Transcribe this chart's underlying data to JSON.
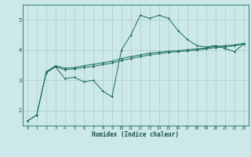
{
  "xlabel": "Humidex (Indice chaleur)",
  "background_color": "#cce8e8",
  "grid_color": "#aacccc",
  "line_color": "#1a6a60",
  "xlim": [
    -0.5,
    23.5
  ],
  "ylim": [
    1.5,
    5.5
  ],
  "yticks": [
    2,
    3,
    4,
    5
  ],
  "xticks": [
    0,
    1,
    2,
    3,
    4,
    5,
    6,
    7,
    8,
    9,
    10,
    11,
    12,
    13,
    14,
    15,
    16,
    17,
    18,
    19,
    20,
    21,
    22,
    23
  ],
  "series1_x": [
    0,
    1,
    2,
    3,
    4,
    5,
    6,
    7,
    8,
    9,
    10,
    11,
    12,
    13,
    14,
    15,
    16,
    17,
    18,
    19,
    20,
    21,
    22,
    23
  ],
  "series1_y": [
    1.65,
    1.85,
    3.25,
    3.45,
    3.05,
    3.1,
    2.95,
    3.0,
    2.65,
    2.45,
    4.0,
    4.5,
    5.15,
    5.05,
    5.15,
    5.05,
    4.65,
    4.35,
    4.15,
    4.1,
    4.15,
    4.05,
    3.95,
    4.2
  ],
  "series2_x": [
    0,
    1,
    2,
    3,
    4,
    5,
    6,
    7,
    8,
    9,
    10,
    11,
    12,
    13,
    14,
    15,
    16,
    17,
    18,
    19,
    20,
    21,
    22,
    23
  ],
  "series2_y": [
    1.65,
    1.85,
    3.25,
    3.45,
    3.35,
    3.38,
    3.42,
    3.46,
    3.52,
    3.57,
    3.65,
    3.72,
    3.78,
    3.84,
    3.88,
    3.92,
    3.95,
    3.97,
    4.0,
    4.04,
    4.08,
    4.11,
    4.14,
    4.2
  ],
  "series3_x": [
    2,
    3,
    4,
    5,
    6,
    7,
    8,
    9,
    10,
    11,
    12,
    13,
    14,
    15,
    16,
    17,
    18,
    19,
    20,
    21,
    22,
    23
  ],
  "series3_y": [
    3.28,
    3.48,
    3.4,
    3.42,
    3.48,
    3.53,
    3.58,
    3.63,
    3.72,
    3.78,
    3.84,
    3.9,
    3.93,
    3.96,
    3.98,
    4.01,
    4.04,
    4.07,
    4.12,
    4.14,
    4.17,
    4.22
  ]
}
